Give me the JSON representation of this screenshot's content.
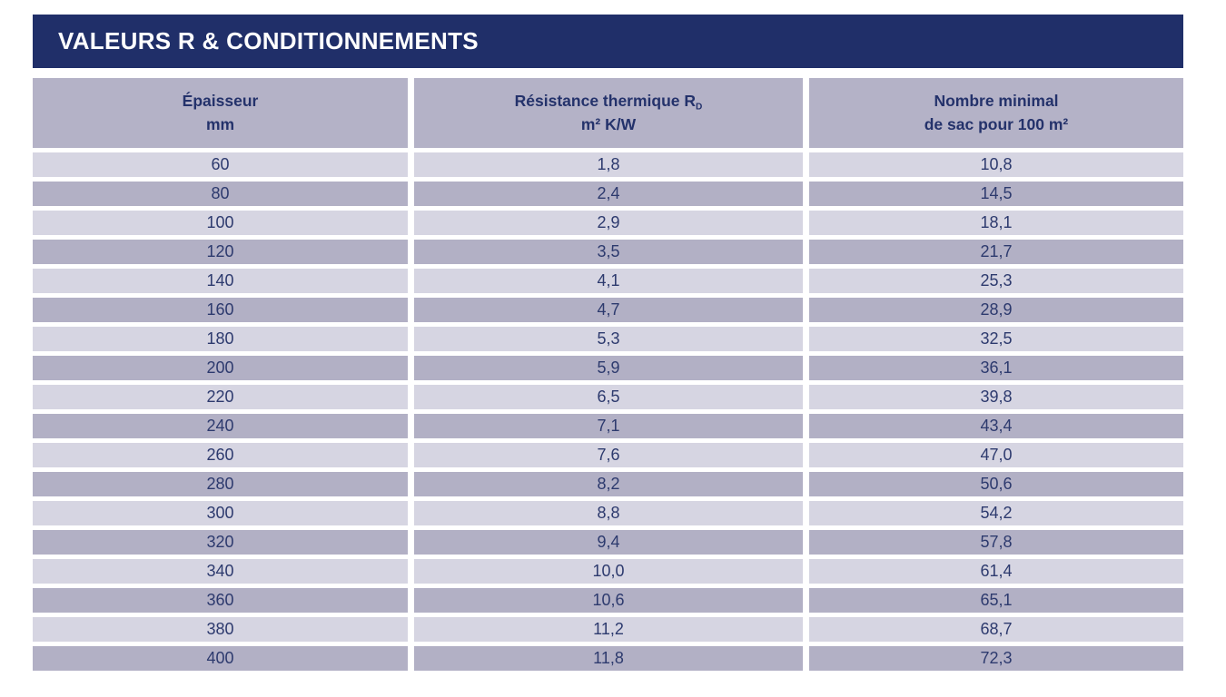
{
  "title": "VALEURS R & CONDITIONNEMENTS",
  "colors": {
    "title_bar_bg": "#202f69",
    "title_text": "#ffffff",
    "header_bg": "#b4b2c7",
    "row_dark_bg": "#b2b0c5",
    "row_light_bg": "#d6d5e2",
    "header_text": "#24326b",
    "cell_text": "#2d3a6e",
    "page_bg": "#ffffff"
  },
  "table": {
    "headers": [
      {
        "line1": "Épaisseur",
        "line2": "mm"
      },
      {
        "line1": "Résistance thermique R",
        "line1_sub": "D",
        "line2": "m² K/W"
      },
      {
        "line1": "Nombre minimal",
        "line2": "de sac pour 100 m²"
      }
    ],
    "rows": [
      [
        "60",
        "1,8",
        "10,8"
      ],
      [
        "80",
        "2,4",
        "14,5"
      ],
      [
        "100",
        "2,9",
        "18,1"
      ],
      [
        "120",
        "3,5",
        "21,7"
      ],
      [
        "140",
        "4,1",
        "25,3"
      ],
      [
        "160",
        "4,7",
        "28,9"
      ],
      [
        "180",
        "5,3",
        "32,5"
      ],
      [
        "200",
        "5,9",
        "36,1"
      ],
      [
        "220",
        "6,5",
        "39,8"
      ],
      [
        "240",
        "7,1",
        "43,4"
      ],
      [
        "260",
        "7,6",
        "47,0"
      ],
      [
        "280",
        "8,2",
        "50,6"
      ],
      [
        "300",
        "8,8",
        "54,2"
      ],
      [
        "320",
        "9,4",
        "57,8"
      ],
      [
        "340",
        "10,0",
        "61,4"
      ],
      [
        "360",
        "10,6",
        "65,1"
      ],
      [
        "380",
        "11,2",
        "68,7"
      ],
      [
        "400",
        "11,8",
        "72,3"
      ]
    ],
    "column_names": [
      "thickness-value",
      "r-value",
      "bags-value"
    ]
  }
}
